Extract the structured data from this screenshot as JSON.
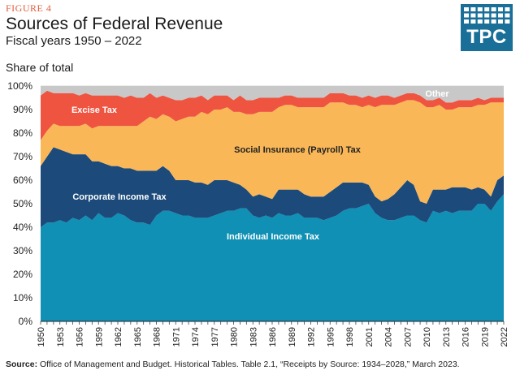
{
  "figure_label": "FIGURE 4",
  "title": "Sources of Federal Revenue",
  "subtitle": "Fiscal years 1950 – 2022",
  "logo_text": "TPC",
  "source": {
    "label": "Source:",
    "text": "Office of Management and Budget. Historical Tables. Table 2.1, “Receipts by Source: 1934–2028,” March 2023."
  },
  "colors": {
    "individual": "#0f90b4",
    "corporate": "#1b4a7b",
    "social": "#f9b757",
    "excise": "#ef5440",
    "other": "#c8c8c8",
    "logo": "#1a6f98",
    "figure_label": "#e25d3d"
  },
  "chart_data": {
    "type": "area",
    "stacked": true,
    "ylabel": "Share of total",
    "ylim": [
      0,
      100
    ],
    "yticks": [
      "0%",
      "10%",
      "20%",
      "30%",
      "40%",
      "50%",
      "60%",
      "70%",
      "80%",
      "90%",
      "100%"
    ],
    "x": [
      1950,
      1951,
      1952,
      1953,
      1954,
      1955,
      1956,
      1957,
      1958,
      1959,
      1960,
      1961,
      1962,
      1963,
      1964,
      1965,
      1966,
      1967,
      1968,
      1969,
      1970,
      1971,
      1972,
      1973,
      1974,
      1975,
      1976,
      1977,
      1978,
      1979,
      1980,
      1981,
      1982,
      1983,
      1984,
      1985,
      1986,
      1987,
      1988,
      1989,
      1990,
      1991,
      1992,
      1993,
      1994,
      1995,
      1996,
      1997,
      1998,
      1999,
      2000,
      2001,
      2002,
      2003,
      2004,
      2005,
      2006,
      2007,
      2008,
      2009,
      2010,
      2011,
      2012,
      2013,
      2014,
      2015,
      2016,
      2017,
      2018,
      2019,
      2020,
      2021,
      2022
    ],
    "xtick_labels": [
      "1950",
      "1953",
      "1956",
      "1959",
      "1962",
      "1965",
      "1968",
      "1971",
      "1974",
      "1977",
      "1980",
      "1983",
      "1986",
      "1989",
      "1992",
      "1995",
      "1998",
      "2001",
      "2004",
      "2007",
      "2010",
      "2013",
      "2016",
      "2019",
      "2022"
    ],
    "series": [
      {
        "name": "Individual Income Tax",
        "label": "Individual Income Tax",
        "values": [
          40,
          42,
          42,
          43,
          42,
          44,
          43,
          45,
          43,
          46,
          44,
          44,
          46,
          45,
          43,
          42,
          42,
          41,
          45,
          47,
          47,
          46,
          45,
          45,
          44,
          44,
          44,
          45,
          46,
          47,
          47,
          48,
          48,
          45,
          44,
          45,
          44,
          46,
          45,
          45,
          46,
          44,
          44,
          44,
          43,
          44,
          45,
          47,
          48,
          48,
          49,
          50,
          46,
          44,
          43,
          43,
          44,
          45,
          45,
          43,
          42,
          47,
          46,
          47,
          46,
          47,
          47,
          47,
          50,
          50,
          47,
          51,
          54
        ]
      },
      {
        "name": "Corporate Income Tax",
        "label": "Corporate Income Tax",
        "values": [
          26,
          28,
          32,
          30,
          30,
          27,
          28,
          26,
          25,
          22,
          23,
          22,
          20,
          20,
          22,
          22,
          22,
          23,
          19,
          19,
          17,
          14,
          15,
          15,
          15,
          15,
          14,
          15,
          14,
          13,
          12,
          10,
          8,
          8,
          10,
          8,
          8,
          10,
          11,
          11,
          10,
          10,
          9,
          9,
          10,
          11,
          12,
          12,
          11,
          11,
          10,
          8,
          7,
          7,
          9,
          11,
          13,
          15,
          13,
          8,
          8,
          9,
          10,
          9,
          11,
          10,
          10,
          9,
          7,
          6,
          6,
          9,
          8
        ]
      },
      {
        "name": "Social Insurance (Payroll) Tax",
        "label": "Social Insurance (Payroll) Tax",
        "values": [
          11,
          11,
          10,
          10,
          11,
          12,
          12,
          13,
          14,
          15,
          16,
          17,
          17,
          18,
          18,
          19,
          21,
          23,
          22,
          22,
          23,
          25,
          26,
          27,
          28,
          30,
          30,
          30,
          30,
          31,
          30,
          31,
          32,
          35,
          35,
          36,
          37,
          35,
          36,
          36,
          35,
          37,
          38,
          38,
          38,
          38,
          36,
          34,
          33,
          33,
          32,
          34,
          38,
          41,
          40,
          38,
          36,
          34,
          36,
          42,
          41,
          35,
          36,
          34,
          33,
          34,
          34,
          35,
          35,
          36,
          40,
          33,
          31
        ]
      },
      {
        "name": "Excise Tax",
        "label": "Excise Tax",
        "values": [
          19,
          17,
          13,
          14,
          14,
          14,
          13,
          13,
          14,
          13,
          13,
          13,
          13,
          12,
          13,
          12,
          10,
          10,
          9,
          8,
          8,
          9,
          8,
          8,
          8,
          7,
          6,
          6,
          6,
          5,
          5,
          7,
          6,
          6,
          6,
          6,
          6,
          4,
          4,
          4,
          4,
          4,
          4,
          4,
          4,
          4,
          4,
          4,
          4,
          4,
          4,
          4,
          4,
          4,
          4,
          3,
          3,
          3,
          3,
          3,
          3,
          3,
          3,
          3,
          3,
          3,
          3,
          3,
          3,
          2,
          2,
          2,
          2
        ]
      },
      {
        "name": "Other",
        "label": "Other",
        "values": [
          4,
          2,
          3,
          3,
          3,
          3,
          4,
          3,
          4,
          4,
          4,
          4,
          4,
          5,
          4,
          5,
          5,
          3,
          5,
          4,
          5,
          6,
          6,
          5,
          5,
          4,
          6,
          4,
          4,
          4,
          6,
          4,
          6,
          6,
          5,
          5,
          5,
          5,
          4,
          4,
          5,
          5,
          5,
          5,
          5,
          3,
          3,
          3,
          4,
          4,
          5,
          4,
          5,
          4,
          4,
          5,
          4,
          3,
          3,
          4,
          6,
          6,
          5,
          7,
          7,
          6,
          6,
          6,
          5,
          6,
          5,
          5,
          5
        ]
      }
    ]
  }
}
